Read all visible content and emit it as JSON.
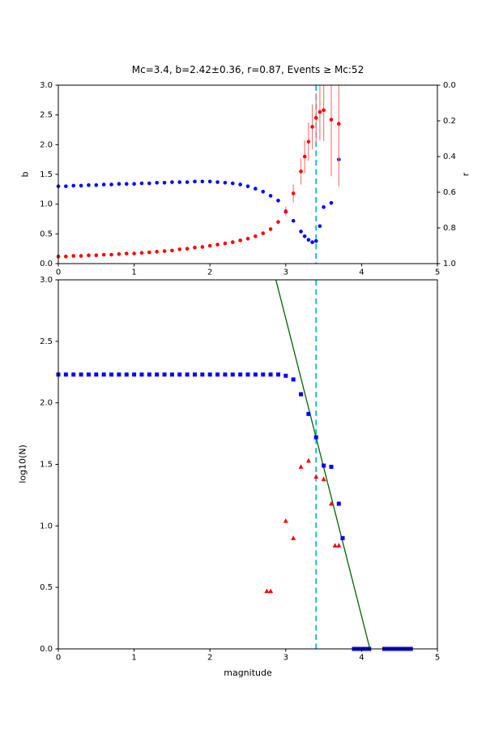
{
  "figure": {
    "title": "Mc=3.4, b=2.42±0.36, r=0.87, Events ≥ Mc:52",
    "background": "#ffffff"
  },
  "chart_data": [
    {
      "id": "bvalue-plot",
      "type": "scatter",
      "title": "Mc=3.4, b=2.42±0.36, r=0.87, Events ≥ Mc:52",
      "xlabel": "",
      "ylabel": "b",
      "xlim": [
        0,
        5
      ],
      "ylim": [
        0,
        3
      ],
      "grid": false,
      "legend": "none",
      "xticks": {
        "values": [
          0,
          1,
          2,
          3,
          4,
          5
        ],
        "labels": [
          "0",
          "1",
          "2",
          "3",
          "4",
          "5"
        ]
      },
      "yticks": {
        "values": [
          0,
          0.5,
          1,
          1.5,
          2,
          2.5,
          3
        ],
        "labels": [
          "0.0",
          "0.5",
          "1.0",
          "1.5",
          "2.0",
          "2.5",
          "3.0"
        ]
      },
      "right_axis": {
        "label": "r",
        "ticks": {
          "values": [
            0,
            0.2,
            0.4,
            0.6,
            0.8,
            1.0
          ],
          "labels": [
            "0.0",
            "0.2",
            "0.4",
            "0.6",
            "0.8",
            "1.0"
          ]
        },
        "range": [
          0,
          1
        ],
        "inverted": true
      },
      "vline": {
        "x": 3.4,
        "color": "#00bfbf",
        "dash": true,
        "name": "mc-cutoff-line"
      },
      "series": [
        {
          "name": "b-value-vs-cutoff",
          "marker": "circle",
          "color": "#0000ff",
          "x": [
            0.0,
            0.1,
            0.2,
            0.3,
            0.4,
            0.5,
            0.6,
            0.7,
            0.8,
            0.9,
            1.0,
            1.1,
            1.2,
            1.3,
            1.4,
            1.5,
            1.6,
            1.7,
            1.8,
            1.9,
            2.0,
            2.1,
            2.2,
            2.3,
            2.4,
            2.5,
            2.6,
            2.7,
            2.8,
            2.9,
            3.0,
            3.1,
            3.2,
            3.25,
            3.3,
            3.35,
            3.4,
            3.45,
            3.5,
            3.6,
            3.7
          ],
          "y": [
            1.3,
            1.3,
            1.31,
            1.31,
            1.32,
            1.32,
            1.33,
            1.33,
            1.34,
            1.34,
            1.34,
            1.35,
            1.35,
            1.36,
            1.36,
            1.37,
            1.37,
            1.37,
            1.38,
            1.38,
            1.38,
            1.37,
            1.36,
            1.35,
            1.33,
            1.3,
            1.26,
            1.21,
            1.14,
            1.06,
            0.87,
            0.72,
            0.54,
            0.46,
            0.4,
            0.36,
            0.38,
            0.63,
            0.95,
            1.02,
            1.75
          ]
        },
        {
          "name": "r-residual-vs-cutoff",
          "marker": "circle",
          "color": "#ff0000",
          "errorbar_color": "#f08080",
          "x": [
            0.0,
            0.1,
            0.2,
            0.3,
            0.4,
            0.5,
            0.6,
            0.7,
            0.8,
            0.9,
            1.0,
            1.1,
            1.2,
            1.3,
            1.4,
            1.5,
            1.6,
            1.7,
            1.8,
            1.9,
            2.0,
            2.1,
            2.2,
            2.3,
            2.4,
            2.5,
            2.6,
            2.7,
            2.8,
            2.9,
            3.0,
            3.1,
            3.2,
            3.25,
            3.3,
            3.35,
            3.4,
            3.45,
            3.5,
            3.6,
            3.7
          ],
          "y": [
            0.12,
            0.12,
            0.13,
            0.13,
            0.14,
            0.14,
            0.15,
            0.15,
            0.16,
            0.17,
            0.17,
            0.18,
            0.19,
            0.2,
            0.21,
            0.22,
            0.24,
            0.25,
            0.27,
            0.28,
            0.3,
            0.32,
            0.34,
            0.36,
            0.39,
            0.42,
            0.46,
            0.51,
            0.58,
            0.7,
            0.88,
            1.18,
            1.55,
            1.8,
            2.05,
            2.3,
            2.45,
            2.55,
            2.58,
            2.42,
            2.35
          ],
          "yerr": [
            0,
            0,
            0,
            0,
            0,
            0,
            0,
            0,
            0,
            0,
            0,
            0,
            0,
            0,
            0,
            0,
            0,
            0,
            0,
            0,
            0,
            0,
            0,
            0,
            0,
            0,
            0,
            0,
            0,
            0,
            0.08,
            0.15,
            0.22,
            0.28,
            0.32,
            0.38,
            0.42,
            0.48,
            0.52,
            0.95,
            1.05
          ]
        }
      ]
    },
    {
      "id": "fmd-plot",
      "type": "scatter",
      "title": "",
      "xlabel": "magnitude",
      "ylabel": "log10(N)",
      "xlim": [
        0,
        5
      ],
      "ylim": [
        0,
        3
      ],
      "grid": false,
      "legend": "none",
      "xticks": {
        "values": [
          0,
          1,
          2,
          3,
          4,
          5
        ],
        "labels": [
          "0",
          "1",
          "2",
          "3",
          "4",
          "5"
        ]
      },
      "yticks": {
        "values": [
          0,
          0.5,
          1,
          1.5,
          2,
          2.5,
          3
        ],
        "labels": [
          "0.0",
          "0.5",
          "1.0",
          "1.5",
          "2.0",
          "2.5",
          "3.0"
        ]
      },
      "vline": {
        "x": 3.4,
        "color": "#00bfbf",
        "dash": true,
        "name": "mc-cutoff-line"
      },
      "fit_line": {
        "name": "gutenberg-richter-fit",
        "color": "#006400",
        "x": [
          2.87,
          4.11
        ],
        "y": [
          3.0,
          0.0
        ]
      },
      "series": [
        {
          "name": "cumulative-counts",
          "marker": "square",
          "color": "#0000ff",
          "x": [
            0.0,
            0.1,
            0.2,
            0.3,
            0.4,
            0.5,
            0.6,
            0.7,
            0.8,
            0.9,
            1.0,
            1.1,
            1.2,
            1.3,
            1.4,
            1.5,
            1.6,
            1.7,
            1.8,
            1.9,
            2.0,
            2.1,
            2.2,
            2.3,
            2.4,
            2.5,
            2.6,
            2.7,
            2.8,
            2.9,
            3.0,
            3.1,
            3.2,
            3.3,
            3.4,
            3.5,
            3.6,
            3.7,
            3.75,
            3.9,
            3.95,
            4.0,
            4.05,
            4.1,
            4.3,
            4.35,
            4.4,
            4.45,
            4.5,
            4.55,
            4.6,
            4.65
          ],
          "y": [
            2.23,
            2.23,
            2.23,
            2.23,
            2.23,
            2.23,
            2.23,
            2.23,
            2.23,
            2.23,
            2.23,
            2.23,
            2.23,
            2.23,
            2.23,
            2.23,
            2.23,
            2.23,
            2.23,
            2.23,
            2.23,
            2.23,
            2.23,
            2.23,
            2.23,
            2.23,
            2.23,
            2.23,
            2.23,
            2.23,
            2.22,
            2.19,
            2.07,
            1.91,
            1.72,
            1.49,
            1.48,
            1.18,
            0.9,
            0.0,
            0.0,
            0.0,
            0.0,
            0.0,
            0.0,
            0.0,
            0.0,
            0.0,
            0.0,
            0.0,
            0.0,
            0.0
          ]
        },
        {
          "name": "noncumulative-counts",
          "marker": "triangle",
          "color": "#ff0000",
          "x": [
            2.75,
            2.8,
            3.0,
            3.1,
            3.2,
            3.3,
            3.4,
            3.5,
            3.6,
            3.65,
            3.7
          ],
          "y": [
            0.47,
            0.47,
            1.04,
            0.9,
            1.48,
            1.53,
            1.4,
            1.38,
            1.18,
            0.84,
            0.84
          ]
        }
      ]
    }
  ]
}
